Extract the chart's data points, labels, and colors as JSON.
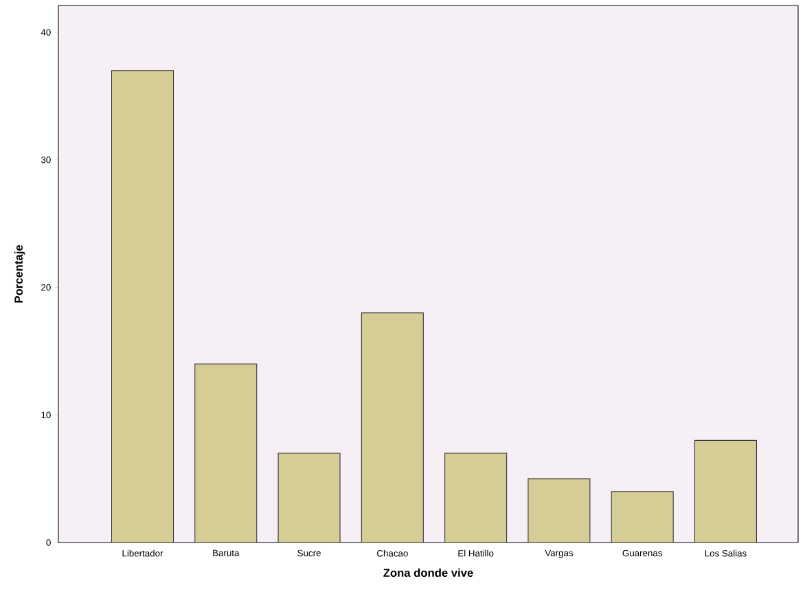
{
  "chart_data": {
    "type": "bar",
    "xlabel": "Zona donde vive",
    "ylabel": "Porcentaje",
    "categories": [
      "Libertador",
      "Baruta",
      "Sucre",
      "Chacao",
      "El Hatillo",
      "Vargas",
      "Guarenas",
      "Los Salias"
    ],
    "values": [
      37,
      14,
      7,
      18,
      7,
      5,
      4,
      8
    ],
    "color": "#d6cc96",
    "ylim": [
      0,
      42.1
    ],
    "yticks": [
      0,
      10,
      20,
      30,
      40
    ]
  }
}
